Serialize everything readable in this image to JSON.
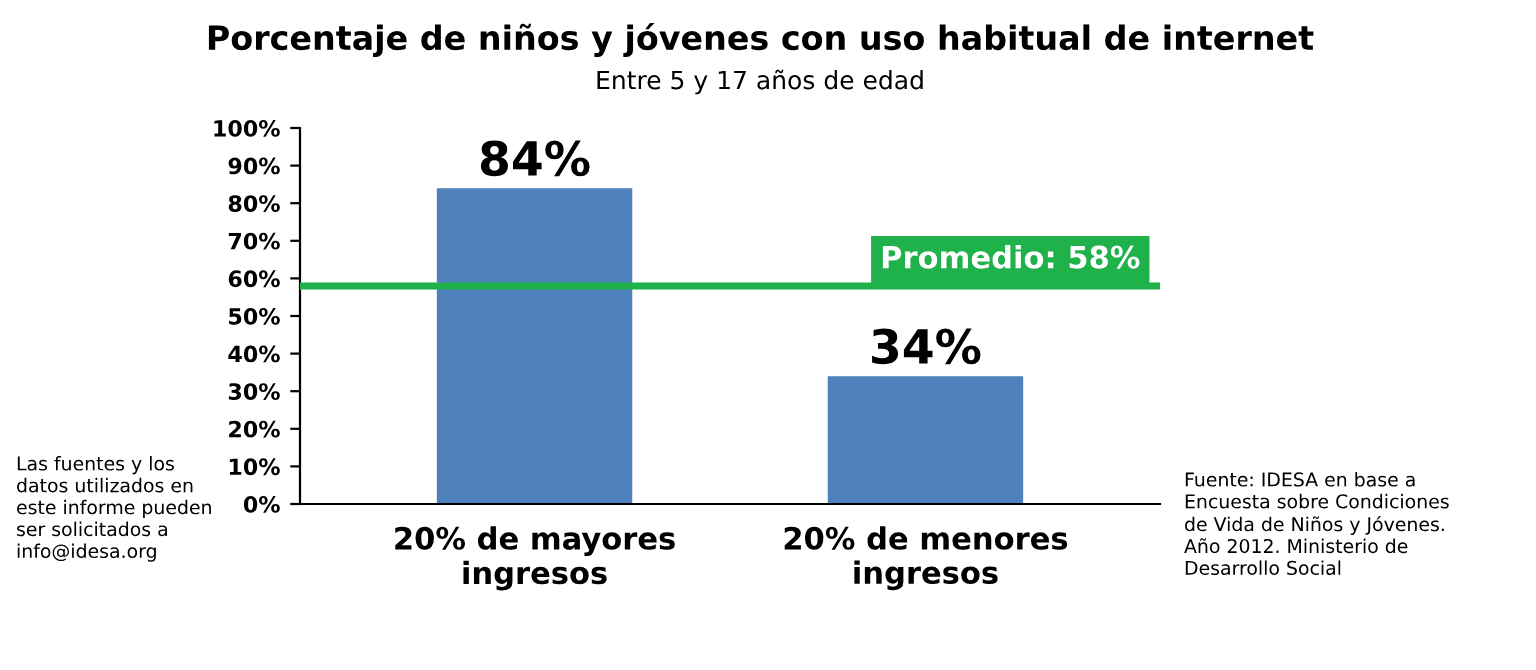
{
  "chart_data": {
    "type": "bar",
    "title": "Porcentaje de niños y jóvenes con uso habitual de internet",
    "subtitle": "Entre 5 y 17 años de edad",
    "categories": [
      "20% de mayores\ningresos",
      "20% de menores\ningresos"
    ],
    "values": [
      84,
      34
    ],
    "value_labels": [
      "84%",
      "34%"
    ],
    "color": "#4f81bd",
    "ylim": [
      0,
      100
    ],
    "yticks": [
      {
        "value": 0,
        "label": "0%"
      },
      {
        "value": 10,
        "label": "10%"
      },
      {
        "value": 20,
        "label": "20%"
      },
      {
        "value": 30,
        "label": "30%"
      },
      {
        "value": 40,
        "label": "40%"
      },
      {
        "value": 50,
        "label": "50%"
      },
      {
        "value": 60,
        "label": "60%"
      },
      {
        "value": 70,
        "label": "70%"
      },
      {
        "value": 80,
        "label": "80%"
      },
      {
        "value": 90,
        "label": "90%"
      },
      {
        "value": 100,
        "label": "100%"
      }
    ],
    "ref_lines": [
      {
        "axis": "y",
        "value": 58,
        "label": "Promedio: 58%",
        "color": "#1fb14a"
      }
    ],
    "grid": false,
    "legend": false,
    "annotations": [
      "Las fuentes y los\ndatos utilizados en\neste informe pueden\nser solicitados a\ninfo@idesa.org",
      "Fuente: IDESA en base a\nEncuesta sobre Condiciones\nde Vida de Niños y Jóvenes.\nAño 2012. Ministerio de\nDesarrollo Social"
    ]
  }
}
